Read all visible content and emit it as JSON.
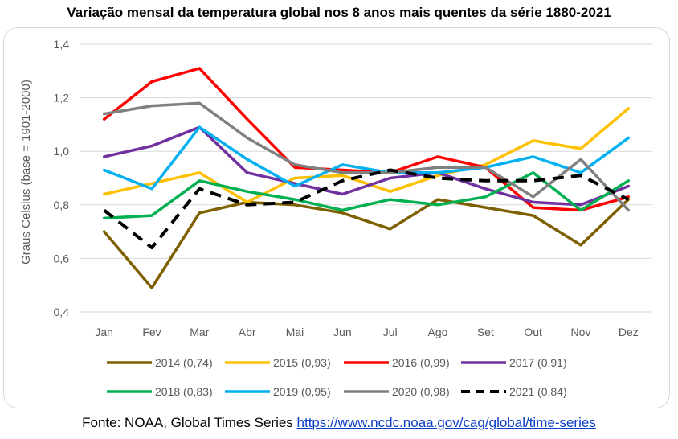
{
  "chart_data": {
    "type": "line",
    "title": "Variação mensal da temperatura global nos 8 anos mais quentes da série 1880-2021",
    "ylabel": "Graus Celsius (base = 1901-2000)",
    "xlabel": "",
    "ylim": [
      0.4,
      1.4
    ],
    "yticks": [
      "0,4",
      "0,6",
      "0,8",
      "1,0",
      "1,2",
      "1,4"
    ],
    "ytick_values": [
      0.4,
      0.6,
      0.8,
      1.0,
      1.2,
      1.4
    ],
    "categories": [
      "Jan",
      "Fev",
      "Mar",
      "Abr",
      "Mai",
      "Jun",
      "Jul",
      "Ago",
      "Set",
      "Out",
      "Nov",
      "Dez"
    ],
    "grid": true,
    "legend_position": "bottom",
    "series": [
      {
        "name": "2014 (0,74)",
        "color": "#7f6000",
        "dashed": false,
        "values": [
          0.7,
          0.49,
          0.77,
          0.81,
          0.8,
          0.77,
          0.71,
          0.82,
          0.79,
          0.76,
          0.65,
          0.82
        ]
      },
      {
        "name": "2015 (0,93)",
        "color": "#ffc000",
        "dashed": false,
        "values": [
          0.84,
          0.88,
          0.92,
          0.81,
          0.9,
          0.91,
          0.85,
          0.91,
          0.95,
          1.04,
          1.01,
          1.16
        ]
      },
      {
        "name": "2016 (0,99)",
        "color": "#ff0000",
        "dashed": false,
        "values": [
          1.12,
          1.26,
          1.31,
          1.12,
          0.94,
          0.93,
          0.92,
          0.98,
          0.94,
          0.79,
          0.78,
          0.83
        ]
      },
      {
        "name": "2017 (0,91)",
        "color": "#7030a0",
        "dashed": false,
        "values": [
          0.98,
          1.02,
          1.09,
          0.92,
          0.88,
          0.84,
          0.9,
          0.92,
          0.86,
          0.81,
          0.8,
          0.87
        ]
      },
      {
        "name": "2018 (0,83)",
        "color": "#00b050",
        "dashed": false,
        "values": [
          0.75,
          0.76,
          0.89,
          0.85,
          0.82,
          0.78,
          0.82,
          0.8,
          0.83,
          0.92,
          0.78,
          0.89
        ]
      },
      {
        "name": "2019 (0,95)",
        "color": "#00b0f0",
        "dashed": false,
        "values": [
          0.93,
          0.86,
          1.09,
          0.97,
          0.87,
          0.95,
          0.92,
          0.92,
          0.94,
          0.98,
          0.92,
          1.05
        ]
      },
      {
        "name": "2020 (0,98)",
        "color": "#808080",
        "dashed": false,
        "values": [
          1.14,
          1.17,
          1.18,
          1.05,
          0.95,
          0.92,
          0.92,
          0.94,
          0.94,
          0.83,
          0.97,
          0.78
        ]
      },
      {
        "name": "2021 (0,84)",
        "color": "#000000",
        "dashed": true,
        "values": [
          0.78,
          0.64,
          0.86,
          0.8,
          0.81,
          0.89,
          0.93,
          0.9,
          0.89,
          0.89,
          0.91,
          0.82
        ]
      }
    ]
  },
  "source": {
    "prefix": "Fonte: NOAA, Global Times Series ",
    "link": "https://www.ncdc.noaa.gov/cag/global/time-series"
  }
}
